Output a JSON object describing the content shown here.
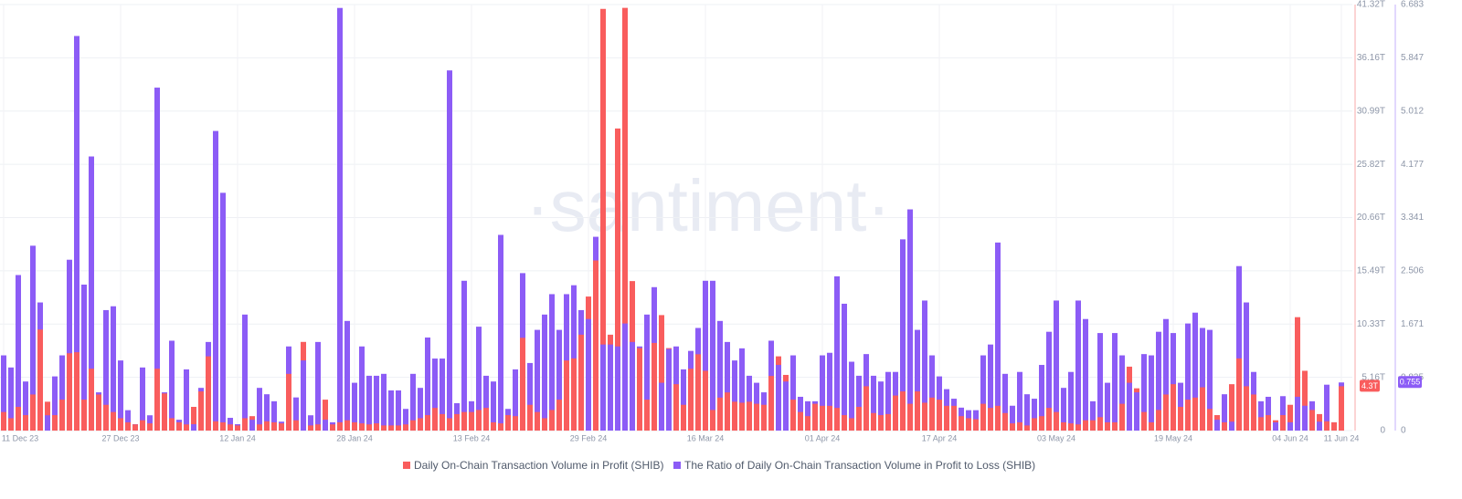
{
  "chart_data": {
    "type": "bar",
    "watermark": "·santiment·",
    "categories": [
      "11 Dec 23",
      null,
      null,
      null,
      null,
      null,
      null,
      null,
      null,
      null,
      null,
      null,
      null,
      null,
      null,
      null,
      "27 Dec 23",
      null,
      null,
      null,
      null,
      null,
      null,
      null,
      null,
      null,
      null,
      null,
      null,
      null,
      null,
      null,
      "12 Jan 24",
      null,
      null,
      null,
      null,
      null,
      null,
      null,
      null,
      null,
      null,
      null,
      null,
      null,
      null,
      null,
      "28 Jan 24",
      null,
      null,
      null,
      null,
      null,
      null,
      null,
      null,
      null,
      null,
      null,
      null,
      null,
      null,
      null,
      "13 Feb 24",
      null,
      null,
      null,
      null,
      null,
      null,
      null,
      null,
      null,
      null,
      null,
      null,
      null,
      null,
      null,
      "29 Feb 24",
      null,
      null,
      null,
      null,
      null,
      null,
      null,
      null,
      null,
      null,
      null,
      null,
      null,
      null,
      null,
      "16 Mar 24",
      null,
      null,
      null,
      null,
      null,
      null,
      null,
      null,
      null,
      null,
      null,
      null,
      null,
      null,
      null,
      "01 Apr 24",
      null,
      null,
      null,
      null,
      null,
      null,
      null,
      null,
      null,
      null,
      null,
      null,
      null,
      null,
      null,
      "17 Apr 24",
      null,
      null,
      null,
      null,
      null,
      null,
      null,
      null,
      null,
      null,
      null,
      null,
      null,
      null,
      null,
      "03 May 24",
      null,
      null,
      null,
      null,
      null,
      null,
      null,
      null,
      null,
      null,
      null,
      null,
      null,
      null,
      null,
      "19 May 24",
      null,
      null,
      null,
      null,
      null,
      null,
      null,
      null,
      null,
      null,
      null,
      null,
      null,
      null,
      null,
      "04 Jun 24",
      null,
      null,
      null,
      null,
      null,
      null,
      "11 Jun 24"
    ],
    "series": [
      {
        "name": "Daily On-Chain Transaction Volume in Profit (SHIB)",
        "color": "#f95d5d",
        "last_label": "4.3T",
        "values": [
          1.8,
          1.2,
          2.3,
          1.5,
          3.5,
          9.8,
          2.8,
          1.5,
          3,
          7.5,
          7.6,
          3,
          6,
          3.5,
          2.5,
          1.8,
          1.2,
          0.8,
          0.6,
          1,
          0.7,
          6,
          3.6,
          1.2,
          0.8,
          0.6,
          2.3,
          3.8,
          7.2,
          0.9,
          0.8,
          0.6,
          0.5,
          1.2,
          1.4,
          0.6,
          0.9,
          0.8,
          0.7,
          5.5,
          1,
          8.6,
          0.5,
          0.6,
          3,
          0.6,
          0.8,
          1,
          0.8,
          0.7,
          0.6,
          0.7,
          0.5,
          0.5,
          0.5,
          0.6,
          1,
          1.2,
          1.5,
          2.2,
          1.6,
          1.2,
          1.6,
          1.8,
          1.8,
          2,
          2.2,
          0.8,
          0.7,
          1.5,
          1.4,
          9,
          2.5,
          1.8,
          1.2,
          2,
          3,
          6.8,
          7,
          9.3,
          13,
          16.5,
          40.9,
          9.3,
          29.3,
          41,
          14.5,
          8,
          3,
          8.5,
          11.2,
          8,
          4.5,
          2.5,
          6,
          7.4,
          5.8,
          2,
          3.2,
          3.7,
          2.8,
          2.7,
          2.8,
          2.6,
          2.5,
          5.3,
          7.2,
          5.4,
          3,
          1.8,
          1.4,
          2.6,
          2.4,
          2.4,
          2.2,
          1.5,
          1.2,
          2.3,
          4.3,
          1.7,
          1.5,
          1.6,
          3.4,
          3.8,
          2.6,
          3.8,
          2.7,
          3.2,
          3,
          2.4,
          2.4,
          1.4,
          1.2,
          1.1,
          2.6,
          2.2,
          2.4,
          1.7,
          0.7,
          0.8,
          0.5,
          1.2,
          1.4,
          2.2,
          1.8,
          0.8,
          0.7,
          0.6,
          1,
          1,
          1.3,
          0.8,
          0.8,
          2.6,
          6.2,
          4.1,
          1.8,
          0.8,
          2,
          3.5,
          4.5,
          2.3,
          3,
          3.2,
          4.2,
          2.1,
          1.5,
          0.8,
          4.5,
          7,
          4.3,
          3.5,
          1.3,
          1.5,
          1,
          1.5,
          2.5,
          11,
          5.8,
          2,
          1.6,
          0.9,
          0.8,
          4.3
        ]
      },
      {
        "name": "The Ratio of Daily On-Chain Transaction Volume in Profit to Loss (SHIB)",
        "color": "#8c5cf6",
        "axis": "y2",
        "values": [
          1.18,
          0.99,
          2.44,
          0.77,
          2.9,
          2.01,
          0.24,
          0.85,
          1.18,
          2.68,
          6.19,
          2.29,
          4.3,
          0.6,
          1.89,
          1.95,
          1.1,
          0.32,
          0.1,
          0.99,
          0.24,
          5.38,
          0.6,
          1.41,
          0.17,
          0.96,
          0.1,
          0.67,
          1.39,
          4.7,
          3.73,
          0.2,
          0.1,
          1.82,
          0.17,
          0.67,
          0.57,
          0.46,
          0.14,
          1.32,
          0.52,
          1.1,
          0.24,
          1.39,
          0.17,
          0.13,
          6.63,
          1.72,
          0.75,
          1.32,
          0.86,
          0.86,
          0.89,
          0.63,
          0.63,
          0.34,
          0.89,
          0.67,
          1.46,
          1.13,
          1.13,
          5.65,
          0.43,
          2.35,
          0.46,
          1.63,
          0.86,
          0.77,
          3.07,
          0.34,
          0.96,
          2.47,
          1.06,
          1.58,
          1.82,
          2.14,
          1.58,
          2.14,
          2.28,
          1.89,
          1.75,
          3.04,
          1.35,
          1.35,
          1.32,
          1.68,
          1.39,
          1.32,
          1.82,
          2.25,
          0.75,
          1.28,
          1.32,
          0.96,
          1.25,
          1.61,
          2.35,
          2.35,
          1.72,
          1.39,
          1.1,
          1.29,
          0.86,
          0.75,
          0.6,
          1.41,
          1.03,
          0.77,
          1.18,
          0.53,
          0.46,
          0.46,
          1.18,
          1.22,
          2.42,
          1.99,
          1.08,
          0.86,
          1.2,
          0.86,
          0.77,
          0.92,
          0.92,
          3,
          3.47,
          1.58,
          2.04,
          1.18,
          0.85,
          0.65,
          0.5,
          0.36,
          0.32,
          0.32,
          1.18,
          1.35,
          2.95,
          0.89,
          0.39,
          0.92,
          0.57,
          0.5,
          1.03,
          1.55,
          2.04,
          0.67,
          0.92,
          2.04,
          1.75,
          0.46,
          1.53,
          0.75,
          1.53,
          1.18,
          0.75,
          0.6,
          1.2,
          1.18,
          1.55,
          1.75,
          1.53,
          0.75,
          1.68,
          1.85,
          1.61,
          1.58,
          0.17,
          0.57,
          0.14,
          2.58,
          2.01,
          0.92,
          0.46,
          0.53,
          0.13,
          0.54,
          0.13,
          0.53,
          0.39,
          0.46,
          0.14,
          0.72,
          0.13,
          0.755
        ]
      }
    ],
    "ylim": [
      0,
      41.32
    ],
    "yticks": [
      0,
      {
        "value": 5.16,
        "label": "5.16T"
      },
      {
        "value": 10.33,
        "label": "10.33T"
      },
      {
        "value": 15.49,
        "label": "15.49T"
      },
      {
        "value": 20.66,
        "label": "20.66T"
      },
      {
        "value": 25.82,
        "label": "25.82T"
      },
      {
        "value": 30.99,
        "label": "30.99T"
      },
      {
        "value": 36.16,
        "label": "36.16T"
      },
      {
        "value": 41.32,
        "label": "41.32T"
      }
    ],
    "y2lim": [
      0,
      6.683
    ],
    "y2ticks": [
      0,
      0.835,
      1.671,
      2.506,
      3.341,
      4.177,
      5.012,
      5.847,
      6.683
    ],
    "grid": true
  }
}
